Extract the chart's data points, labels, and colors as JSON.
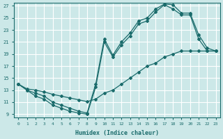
{
  "xlabel": "Humidex (Indice chaleur)",
  "bg_color": "#cce8e8",
  "line_color": "#1a6b6b",
  "grid_color": "#ffffff",
  "xlim": [
    -0.5,
    23.5
  ],
  "ylim": [
    8.5,
    27.5
  ],
  "xticks": [
    0,
    1,
    2,
    3,
    4,
    5,
    6,
    7,
    8,
    9,
    10,
    11,
    12,
    13,
    14,
    15,
    16,
    17,
    18,
    19,
    20,
    21,
    22,
    23
  ],
  "yticks": [
    9,
    11,
    13,
    15,
    17,
    19,
    21,
    23,
    25,
    27
  ],
  "line1_x": [
    0,
    1,
    2,
    3,
    4,
    5,
    6,
    7,
    8,
    9,
    10,
    11,
    12,
    13,
    14,
    15,
    16,
    17,
    18,
    19,
    20,
    21,
    22,
    23
  ],
  "line1_y": [
    14,
    13,
    12,
    11.5,
    10.5,
    10,
    9.5,
    9.2,
    9.0,
    13.5,
    21,
    18.5,
    20.5,
    22,
    24,
    24.5,
    26,
    27.2,
    26.5,
    25.5,
    25.5,
    21.5,
    19.5,
    19.5
  ],
  "line2_x": [
    0,
    1,
    2,
    3,
    4,
    5,
    6,
    7,
    8,
    9,
    10,
    11,
    12,
    13,
    14,
    15,
    16,
    17,
    18,
    19,
    20,
    21,
    22,
    23
  ],
  "line2_y": [
    14,
    13,
    12.5,
    12,
    11,
    10.5,
    10,
    9.5,
    9.2,
    14,
    21.5,
    18.8,
    21,
    22.5,
    24.5,
    25,
    26.5,
    27.3,
    27.2,
    25.8,
    25.8,
    22.2,
    20,
    19.5
  ],
  "line3_x": [
    0,
    1,
    2,
    3,
    4,
    5,
    6,
    7,
    8,
    9,
    10,
    11,
    12,
    13,
    14,
    15,
    16,
    17,
    18,
    19,
    20,
    21,
    22,
    23
  ],
  "line3_y": [
    14,
    13.2,
    13.0,
    12.7,
    12.3,
    12.0,
    11.7,
    11.4,
    11.1,
    11.5,
    12.5,
    13.0,
    14.0,
    15.0,
    16.0,
    17.0,
    17.5,
    18.5,
    19.0,
    19.5,
    19.5,
    19.5,
    19.5,
    19.5
  ]
}
